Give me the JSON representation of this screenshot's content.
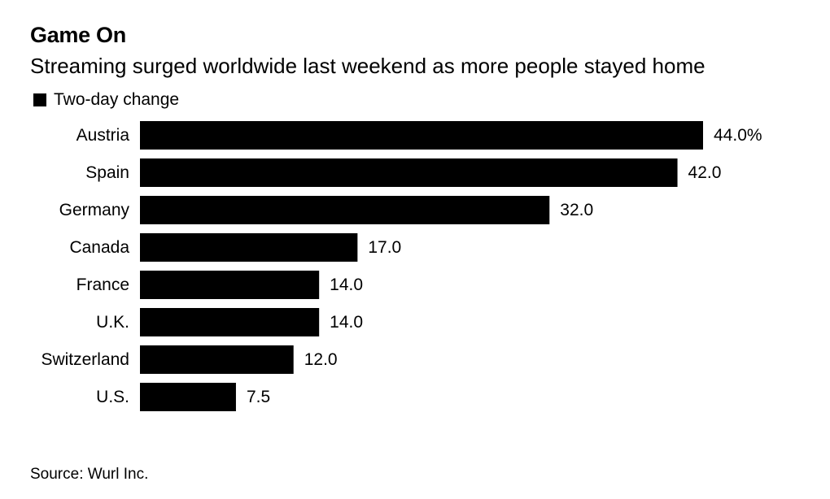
{
  "colors": {
    "bar": "#000000",
    "text": "#000000",
    "background": "#ffffff"
  },
  "chart_data": {
    "type": "bar",
    "orientation": "horizontal",
    "title": "Game On",
    "subtitle": "Streaming surged worldwide last weekend as more people stayed home",
    "legend_position": "top-left",
    "grid": false,
    "xlim": [
      0,
      44
    ],
    "categories": [
      "Austria",
      "Spain",
      "Germany",
      "Canada",
      "France",
      "U.K.",
      "Switzerland",
      "U.S."
    ],
    "series": [
      {
        "name": "Two-day change",
        "values": [
          44.0,
          42.0,
          32.0,
          17.0,
          14.0,
          14.0,
          12.0,
          7.5
        ]
      }
    ],
    "value_labels": [
      "44.0%",
      "42.0",
      "32.0",
      "17.0",
      "14.0",
      "14.0",
      "12.0",
      "7.5"
    ],
    "source": "Source: Wurl Inc."
  }
}
